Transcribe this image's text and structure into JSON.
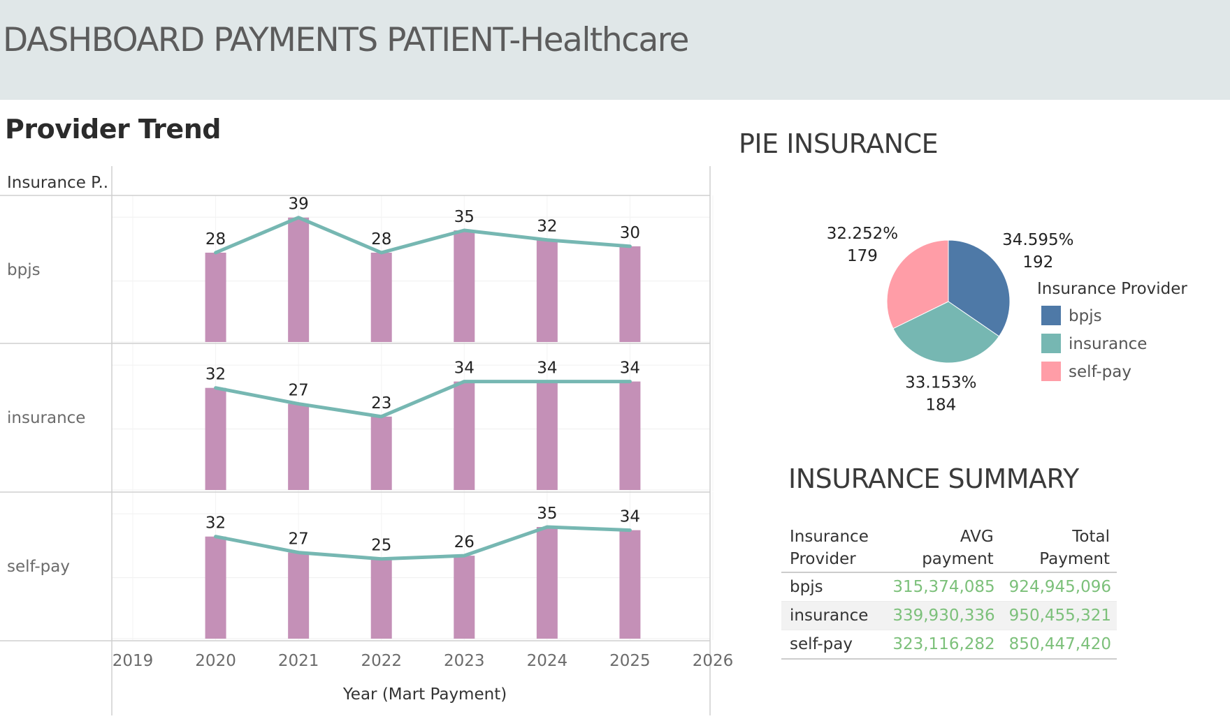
{
  "header": {
    "title": "DASHBOARD PAYMENTS PATIENT-Healthcare"
  },
  "trend": {
    "title": "Provider Trend",
    "row_header": "Insurance P..",
    "xlabel": "Year (Mart Payment)"
  },
  "pie": {
    "title": "PIE INSURANCE",
    "legend_title": "Insurance Provider"
  },
  "summary": {
    "title": "INSURANCE SUMMARY",
    "headers": {
      "provider_l1": "Insurance",
      "provider_l2": "Provider",
      "avg_l1": "AVG",
      "avg_l2": "payment",
      "total_l1": "Total",
      "total_l2": "Payment"
    },
    "rows": [
      {
        "provider": "bpjs",
        "avg": "315,374,085",
        "total": "924,945,096"
      },
      {
        "provider": "insurance",
        "avg": "339,930,336",
        "total": "950,455,321"
      },
      {
        "provider": "self-pay",
        "avg": "323,116,282",
        "total": "850,447,420"
      }
    ]
  },
  "chart_data": [
    {
      "type": "bar",
      "title": "Provider Trend",
      "xlabel": "Year (Mart Payment)",
      "x_ticks": [
        "2019",
        "2020",
        "2021",
        "2022",
        "2023",
        "2024",
        "2025",
        "2026"
      ],
      "xlim": [
        2019,
        2026
      ],
      "categories": [
        "2020",
        "2021",
        "2022",
        "2023",
        "2024",
        "2025"
      ],
      "ylim": [
        0,
        42
      ],
      "grid": true,
      "facets": [
        {
          "name": "bpjs",
          "values": [
            28,
            39,
            28,
            35,
            32,
            30
          ]
        },
        {
          "name": "insurance",
          "values": [
            32,
            27,
            23,
            34,
            34,
            34
          ]
        },
        {
          "name": "self-pay",
          "values": [
            32,
            27,
            25,
            26,
            35,
            34
          ]
        }
      ],
      "bar_color": "#c490b7",
      "line_color": "#76b7b2"
    },
    {
      "type": "pie",
      "title": "PIE INSURANCE",
      "legend_title": "Insurance Provider",
      "legend_position": "right",
      "slices": [
        {
          "name": "bpjs",
          "value": 192,
          "percent": "34.595%",
          "color": "#4e79a7"
        },
        {
          "name": "insurance",
          "value": 184,
          "percent": "33.153%",
          "color": "#76b7b2"
        },
        {
          "name": "self-pay",
          "value": 179,
          "percent": "32.252%",
          "color": "#ff9da7"
        }
      ]
    }
  ]
}
